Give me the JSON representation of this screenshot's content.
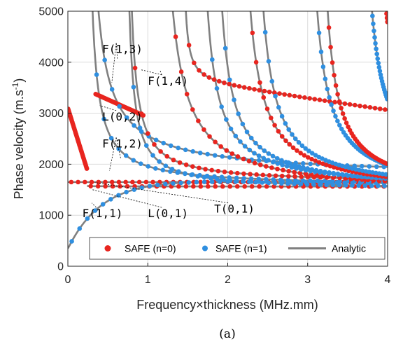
{
  "chart_data": {
    "type": "scatter",
    "xlabel": "Frequency×thickness (MHz.mm)",
    "ylabel": "Phase velocity (m.s",
    "ylabel_sup": "-1",
    "ylabel_end": ")",
    "caption": "(a)",
    "xlim": [
      0,
      4
    ],
    "ylim": [
      0,
      5000
    ],
    "xticks": [
      0,
      1,
      2,
      3,
      4
    ],
    "yticks": [
      0,
      1000,
      2000,
      3000,
      4000,
      5000
    ],
    "grid": true,
    "legend": {
      "placement": "bottom-right",
      "entries": [
        {
          "label": "SAFE (n=0)",
          "marker": "dot",
          "color": "#e8251f"
        },
        {
          "label": "SAFE (n=1)",
          "marker": "dot",
          "color": "#2f8fe0"
        },
        {
          "label": "Analytic",
          "marker": "line",
          "color": "#808080"
        }
      ]
    },
    "annotations": [
      {
        "text": "F(1,3)",
        "x": 0.43,
        "y": 4180,
        "to": [
          [
            0.62,
            4050
          ],
          [
            0.55,
            3600
          ],
          [
            0.62,
            4250
          ]
        ]
      },
      {
        "text": "F(1,4)",
        "x": 1.0,
        "y": 3560,
        "to": [
          [
            1.15,
            3850
          ],
          [
            0.92,
            3850
          ]
        ]
      },
      {
        "text": "L(0,2)",
        "x": 0.43,
        "y": 2860,
        "to": [
          [
            0.4,
            3150
          ]
        ]
      },
      {
        "text": "F(1,2)",
        "x": 0.43,
        "y": 2330,
        "to": [
          [
            0.66,
            2120
          ],
          [
            0.52,
            1870
          ]
        ]
      },
      {
        "text": "F(1,1)",
        "x": 0.18,
        "y": 960,
        "to": [
          [
            0.3,
            1240
          ]
        ]
      },
      {
        "text": "L(0,1)",
        "x": 1.0,
        "y": 960,
        "to": [
          [
            0.31,
            1500
          ]
        ]
      },
      {
        "text": "T(0,1)",
        "x": 1.83,
        "y": 1050,
        "to": [
          [
            0.34,
            1640
          ]
        ]
      }
    ],
    "series_meta": [
      {
        "name": "SAFE (n=0)",
        "color": "#e8251f"
      },
      {
        "name": "SAFE (n=1)",
        "color": "#2f8fe0"
      },
      {
        "name": "Analytic",
        "color": "#808080"
      }
    ],
    "curves": [
      {
        "label": "T(0,1)",
        "family": "n0",
        "kind": "const",
        "c": 1650,
        "x0": 0.0,
        "x1": 4.0
      },
      {
        "label": "L(0,1)",
        "family": "n0",
        "kind": "lowlayer",
        "x0": 0.24,
        "x1": 4.0,
        "A": 1560,
        "B": 5,
        "p": 0.3
      },
      {
        "label": "F(1,1)",
        "family": "n1",
        "kind": "f11",
        "x0": 0.0,
        "x1": 4.0
      },
      {
        "label": "L(0,2)",
        "family": "n0",
        "kind": "l02",
        "x0": 0.0,
        "x1": 0.24
      },
      {
        "label": "F(1,2)",
        "family": "n1",
        "kind": "cutoff",
        "fc": 0.22,
        "A": 1570,
        "B": 870,
        "p": 1.0,
        "x1": 4.0
      },
      {
        "label": "L(0,2)",
        "family": "n0",
        "kind": "l02b",
        "x0": 0.34,
        "x1": 0.95
      },
      {
        "label": "F(1,3)",
        "family": "n1",
        "kind": "cutoff",
        "fc": 0.23,
        "A": 1730,
        "B": 1900,
        "p": 0.85,
        "x1": 4.0
      },
      {
        "label": "F(1,4)",
        "family": "n1",
        "kind": "cutoff",
        "fc": 0.7,
        "A": 1500,
        "B": 700,
        "p": 1.0,
        "x1": 4.0
      },
      {
        "label": "",
        "family": "n0",
        "kind": "cutoff",
        "fc": 0.72,
        "A": 1630,
        "B": 780,
        "p": 1.0,
        "x1": 4.0
      },
      {
        "label": "",
        "family": "n0",
        "kind": "cutoff",
        "fc": 1.1,
        "A": 1400,
        "B": 2200,
        "p": 1.0,
        "x1": 4.0
      },
      {
        "label": "",
        "family": "n0",
        "kind": "plateau",
        "fc": 1.42,
        "A": 3450,
        "B": 0,
        "p": 1.0,
        "x1": 4.0
      },
      {
        "label": "",
        "family": "n1",
        "kind": "cutoff",
        "fc": 1.6,
        "A": 1500,
        "B": 1500,
        "p": 1.0,
        "x1": 4.0
      },
      {
        "label": "",
        "family": "n1",
        "kind": "cutoff",
        "fc": 1.78,
        "A": 1480,
        "B": 1520,
        "p": 1.0,
        "x1": 4.0
      },
      {
        "label": "",
        "family": "n0",
        "kind": "cutoff",
        "fc": 2.1,
        "A": 1400,
        "B": 1900,
        "p": 1.0,
        "x1": 4.0
      },
      {
        "label": "",
        "family": "n1",
        "kind": "cutoff",
        "fc": 2.28,
        "A": 1450,
        "B": 1700,
        "p": 1.0,
        "x1": 4.0
      },
      {
        "label": "",
        "family": "n1",
        "kind": "cutoff",
        "fc": 2.95,
        "A": 1400,
        "B": 1750,
        "p": 1.0,
        "x1": 4.0
      },
      {
        "label": "",
        "family": "n0",
        "kind": "cutoff",
        "fc": 3.1,
        "A": 1400,
        "B": 1550,
        "p": 1.0,
        "x1": 4.0
      },
      {
        "label": "",
        "family": "n1",
        "kind": "cutoff",
        "fc": 3.62,
        "A": 1600,
        "B": 1800,
        "p": 1.0,
        "x1": 4.0
      },
      {
        "label": "",
        "family": "n0",
        "kind": "cutoff",
        "fc": 3.78,
        "A": 1650,
        "B": 1950,
        "p": 1.0,
        "x1": 4.0
      }
    ]
  }
}
